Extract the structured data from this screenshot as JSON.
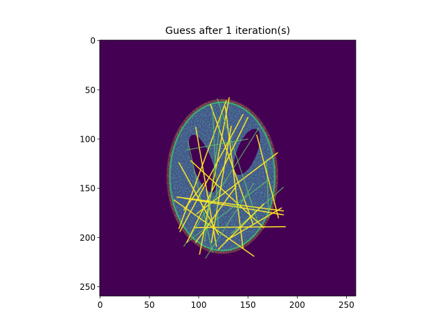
{
  "chart_data": {
    "type": "heatmap",
    "title": "Guess after 1 iteration(s)",
    "xlabel": "",
    "ylabel": "",
    "xlim": [
      -0.5,
      259.5
    ],
    "ylim": [
      259.5,
      -0.5
    ],
    "x_ticks": [
      0,
      50,
      100,
      150,
      200,
      250
    ],
    "y_ticks": [
      0,
      50,
      100,
      150,
      200,
      250
    ],
    "colormap": "viridis",
    "background_color": "#440154",
    "grid": false,
    "legend": "none",
    "image_size": [
      260,
      260
    ],
    "object": {
      "shape": "ellipse",
      "center": [
        124,
        138
      ],
      "radius_x": 54,
      "radius_y": 76,
      "holes": [
        {
          "center": [
            104,
            125
          ],
          "radius_x": 10,
          "radius_y": 31,
          "tilt_deg": -20
        },
        {
          "center": [
            149,
            113
          ],
          "radius_x": 10,
          "radius_y": 25,
          "tilt_deg": 22
        }
      ]
    },
    "streaks": [
      [
        [
          127,
          67
        ],
        [
          145,
          211
        ]
      ],
      [
        [
          112,
          65
        ],
        [
          155,
          186
        ]
      ],
      [
        [
          89,
          102
        ],
        [
          114,
          215
        ]
      ],
      [
        [
          78,
          159
        ],
        [
          186,
          173
        ]
      ],
      [
        [
          131,
          58
        ],
        [
          101,
          217
        ]
      ],
      [
        [
          161,
          89
        ],
        [
          85,
          209
        ]
      ],
      [
        [
          180,
          114
        ],
        [
          98,
          176
        ]
      ],
      [
        [
          128,
          203
        ],
        [
          184,
          170
        ]
      ],
      [
        [
          119,
          59
        ],
        [
          160,
          184
        ]
      ],
      [
        [
          75,
          162
        ],
        [
          156,
          219
        ]
      ],
      [
        [
          128,
          61
        ],
        [
          80,
          191
        ]
      ],
      [
        [
          169,
          121
        ],
        [
          171,
          180
        ]
      ],
      [
        [
          133,
          87
        ],
        [
          113,
          205
        ]
      ],
      [
        [
          97,
          88
        ],
        [
          118,
          209
        ]
      ],
      [
        [
          186,
          149
        ],
        [
          133,
          196
        ]
      ],
      [
        [
          96,
          190
        ],
        [
          188,
          189
        ]
      ],
      [
        [
          85,
          160
        ],
        [
          186,
          177
        ]
      ],
      [
        [
          114,
          67
        ],
        [
          120,
          193
        ]
      ],
      [
        [
          92,
          122
        ],
        [
          166,
          190
        ]
      ],
      [
        [
          145,
          75
        ],
        [
          81,
          194
        ]
      ],
      [
        [
          170,
          142
        ],
        [
          88,
          205
        ]
      ],
      [
        [
          150,
          78
        ],
        [
          88,
          205
        ]
      ],
      [
        [
          80,
          124
        ],
        [
          120,
          197
        ]
      ],
      [
        [
          156,
          145
        ],
        [
          107,
          221
        ]
      ],
      [
        [
          166,
          166
        ],
        [
          120,
          212
        ]
      ],
      [
        [
          105,
          145
        ],
        [
          85,
          172
        ]
      ],
      [
        [
          123,
          75
        ],
        [
          106,
          204
        ]
      ],
      [
        [
          138,
          148
        ],
        [
          97,
          205
        ]
      ],
      [
        [
          159,
          96
        ],
        [
          181,
          180
        ]
      ],
      [
        [
          88,
          111
        ],
        [
          150,
          100
        ]
      ]
    ]
  }
}
